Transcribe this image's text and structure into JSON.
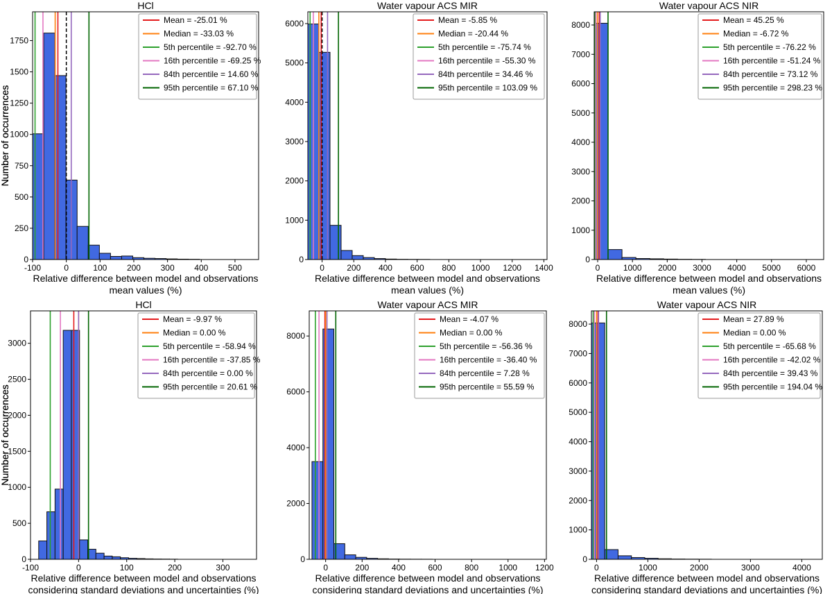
{
  "chart_data": [
    {
      "type": "bar",
      "title": "HCl",
      "xlabel": [
        "Relative difference between model and observations",
        "mean values (%)"
      ],
      "ylabel": "Number of occurrences",
      "xlim": [
        -100,
        570
      ],
      "ylim": [
        0,
        1980
      ],
      "xticks": [
        -100,
        0,
        100,
        200,
        300,
        400,
        500
      ],
      "yticks": [
        0,
        250,
        500,
        750,
        1000,
        1250,
        1500,
        1750
      ],
      "bins": [
        {
          "x0": -100,
          "x1": -67,
          "value": 1005
        },
        {
          "x0": -67,
          "x1": -34,
          "value": 1810
        },
        {
          "x0": -34,
          "x1": -1,
          "value": 1470
        },
        {
          "x0": -1,
          "x1": 32,
          "value": 635
        },
        {
          "x0": 32,
          "x1": 65,
          "value": 265
        },
        {
          "x0": 65,
          "x1": 98,
          "value": 115
        },
        {
          "x0": 98,
          "x1": 131,
          "value": 50
        },
        {
          "x0": 131,
          "x1": 164,
          "value": 25
        },
        {
          "x0": 164,
          "x1": 197,
          "value": 28
        },
        {
          "x0": 197,
          "x1": 230,
          "value": 15
        },
        {
          "x0": 230,
          "x1": 263,
          "value": 10
        },
        {
          "x0": 263,
          "x1": 296,
          "value": 8
        },
        {
          "x0": 296,
          "x1": 329,
          "value": 5
        },
        {
          "x0": 329,
          "x1": 362,
          "value": 3
        },
        {
          "x0": 362,
          "x1": 395,
          "value": 2
        }
      ],
      "vlines": [
        {
          "label": "Mean = -25.01 %",
          "x": -25.01,
          "color": "#e41a1c"
        },
        {
          "label": "Median = -33.03 %",
          "x": -33.03,
          "color": "#ff7f0e"
        },
        {
          "label": "5th percentile = -92.70 %",
          "x": -92.7,
          "color": "#2ca02c"
        },
        {
          "label": "16th percentile = -69.25 %",
          "x": -69.25,
          "color": "#e377c2"
        },
        {
          "label": "84th percentile = 14.60 %",
          "x": 14.6,
          "color": "#9467bd"
        },
        {
          "label": "95th percentile = 67.10 %",
          "x": 67.1,
          "color": "#006400"
        }
      ],
      "zero_line": true,
      "bar_color": "#4169e1",
      "legend_position": "top-right"
    },
    {
      "type": "bar",
      "title": "Water vapour ACS MIR",
      "xlabel": [
        "Relative difference between model and observations",
        "mean values (%)"
      ],
      "ylabel": "Number of occurrences",
      "xlim": [
        -90,
        1420
      ],
      "ylim": [
        0,
        6300
      ],
      "xticks": [
        0,
        200,
        400,
        600,
        800,
        1000,
        1200,
        1400
      ],
      "yticks": [
        0,
        1000,
        2000,
        3000,
        4000,
        5000,
        6000
      ],
      "bins": [
        {
          "x0": -90,
          "x1": -20,
          "value": 5990
        },
        {
          "x0": -20,
          "x1": 50,
          "value": 5270
        },
        {
          "x0": 50,
          "x1": 120,
          "value": 870
        },
        {
          "x0": 120,
          "x1": 190,
          "value": 230
        },
        {
          "x0": 190,
          "x1": 260,
          "value": 100
        },
        {
          "x0": 260,
          "x1": 330,
          "value": 50
        },
        {
          "x0": 330,
          "x1": 400,
          "value": 25
        },
        {
          "x0": 400,
          "x1": 470,
          "value": 12
        },
        {
          "x0": 470,
          "x1": 540,
          "value": 6
        },
        {
          "x0": 540,
          "x1": 610,
          "value": 4
        },
        {
          "x0": 610,
          "x1": 680,
          "value": 3
        }
      ],
      "vlines": [
        {
          "label": "Mean = -5.85 %",
          "x": -5.85,
          "color": "#e41a1c"
        },
        {
          "label": "Median = -20.44 %",
          "x": -20.44,
          "color": "#ff7f0e"
        },
        {
          "label": "5th percentile = -75.74 %",
          "x": -75.74,
          "color": "#2ca02c"
        },
        {
          "label": "16th percentile = -55.30 %",
          "x": -55.3,
          "color": "#e377c2"
        },
        {
          "label": "84th percentile = 34.46 %",
          "x": 34.46,
          "color": "#9467bd"
        },
        {
          "label": "95th percentile = 103.09 %",
          "x": 103.09,
          "color": "#006400"
        }
      ],
      "zero_line": true,
      "bar_color": "#4169e1",
      "legend_position": "top-right"
    },
    {
      "type": "bar",
      "title": "Water vapour ACS NIR",
      "xlabel": [
        "Relative difference between model and observations",
        "mean values (%)"
      ],
      "ylabel": "Number of occurrences",
      "xlim": [
        -100,
        6500
      ],
      "ylim": [
        0,
        8450
      ],
      "xticks": [
        0,
        1000,
        2000,
        3000,
        4000,
        5000,
        6000
      ],
      "yticks": [
        0,
        1000,
        2000,
        3000,
        4000,
        5000,
        6000,
        7000,
        8000
      ],
      "bins": [
        {
          "x0": -100,
          "x1": 300,
          "value": 8060
        },
        {
          "x0": 300,
          "x1": 700,
          "value": 340
        },
        {
          "x0": 700,
          "x1": 1100,
          "value": 70
        },
        {
          "x0": 1100,
          "x1": 1500,
          "value": 35
        },
        {
          "x0": 1500,
          "x1": 1900,
          "value": 25
        },
        {
          "x0": 1900,
          "x1": 2300,
          "value": 15
        },
        {
          "x0": 2300,
          "x1": 2700,
          "value": 8
        },
        {
          "x0": 2700,
          "x1": 3100,
          "value": 5
        }
      ],
      "vlines": [
        {
          "label": "Mean = 45.25 %",
          "x": 45.25,
          "color": "#e41a1c"
        },
        {
          "label": "Median = -6.72 %",
          "x": -6.72,
          "color": "#ff7f0e"
        },
        {
          "label": "5th percentile = -76.22 %",
          "x": -76.22,
          "color": "#2ca02c"
        },
        {
          "label": "16th percentile = -51.24 %",
          "x": -51.24,
          "color": "#e377c2"
        },
        {
          "label": "84th percentile = 73.12 %",
          "x": 73.12,
          "color": "#9467bd"
        },
        {
          "label": "95th percentile = 298.23 %",
          "x": 298.23,
          "color": "#006400"
        }
      ],
      "zero_line": false,
      "bar_color": "#4169e1",
      "legend_position": "top-right"
    },
    {
      "type": "bar",
      "title": "HCl",
      "xlabel": [
        "Relative difference between model and observations",
        "considering standard deviations and uncertainties (%)"
      ],
      "ylabel": "Number of occurrences",
      "xlim": [
        -100,
        370
      ],
      "ylim": [
        0,
        3450
      ],
      "xticks": [
        -100,
        0,
        100,
        200,
        300
      ],
      "yticks": [
        0,
        500,
        1000,
        1500,
        2000,
        2500,
        3000
      ],
      "bins": [
        {
          "x0": -83,
          "x1": -66,
          "value": 255
        },
        {
          "x0": -66,
          "x1": -49,
          "value": 660
        },
        {
          "x0": -49,
          "x1": -32,
          "value": 975
        },
        {
          "x0": -32,
          "x1": -15,
          "value": 3180
        },
        {
          "x0": -15,
          "x1": 2,
          "value": 3180
        },
        {
          "x0": 2,
          "x1": 19,
          "value": 270
        },
        {
          "x0": 19,
          "x1": 36,
          "value": 140
        },
        {
          "x0": 36,
          "x1": 53,
          "value": 85
        },
        {
          "x0": 53,
          "x1": 70,
          "value": 45
        },
        {
          "x0": 70,
          "x1": 87,
          "value": 35
        },
        {
          "x0": 87,
          "x1": 104,
          "value": 22
        },
        {
          "x0": 104,
          "x1": 121,
          "value": 14
        },
        {
          "x0": 121,
          "x1": 138,
          "value": 10
        },
        {
          "x0": 138,
          "x1": 155,
          "value": 6
        },
        {
          "x0": 155,
          "x1": 172,
          "value": 4
        },
        {
          "x0": 172,
          "x1": 189,
          "value": 3
        },
        {
          "x0": 189,
          "x1": 206,
          "value": 2
        }
      ],
      "vlines": [
        {
          "label": "Mean = -9.97 %",
          "x": -9.97,
          "color": "#e41a1c"
        },
        {
          "label": "Median = 0.00 %",
          "x": 0.0,
          "color": "#ff7f0e"
        },
        {
          "label": "5th percentile = -58.94 %",
          "x": -58.94,
          "color": "#2ca02c"
        },
        {
          "label": "16th percentile = -37.85 %",
          "x": -37.85,
          "color": "#e377c2"
        },
        {
          "label": "84th percentile = 0.00 %",
          "x": 0.0,
          "color": "#9467bd"
        },
        {
          "label": "95th percentile = 20.61 %",
          "x": 20.61,
          "color": "#006400"
        }
      ],
      "zero_line": false,
      "bar_color": "#4169e1",
      "legend_position": "top-right"
    },
    {
      "type": "bar",
      "title": "Water vapour ACS MIR",
      "xlabel": [
        "Relative difference between model and observations",
        "considering standard deviations and uncertainties (%)"
      ],
      "ylabel": "Number of occurrences",
      "xlim": [
        -90,
        1210
      ],
      "ylim": [
        0,
        8900
      ],
      "xticks": [
        0,
        200,
        400,
        600,
        800,
        1000,
        1200
      ],
      "yticks": [
        0,
        2000,
        4000,
        6000,
        8000
      ],
      "bins": [
        {
          "x0": -75,
          "x1": -15,
          "value": 3500
        },
        {
          "x0": -15,
          "x1": 45,
          "value": 8250
        },
        {
          "x0": 45,
          "x1": 105,
          "value": 560
        },
        {
          "x0": 105,
          "x1": 165,
          "value": 160
        },
        {
          "x0": 165,
          "x1": 225,
          "value": 70
        },
        {
          "x0": 225,
          "x1": 285,
          "value": 35
        },
        {
          "x0": 285,
          "x1": 345,
          "value": 18
        },
        {
          "x0": 345,
          "x1": 405,
          "value": 10
        },
        {
          "x0": 405,
          "x1": 465,
          "value": 6
        },
        {
          "x0": 465,
          "x1": 525,
          "value": 4
        },
        {
          "x0": 525,
          "x1": 585,
          "value": 3
        }
      ],
      "vlines": [
        {
          "label": "Mean = -4.07 %",
          "x": -4.07,
          "color": "#e41a1c"
        },
        {
          "label": "Median = 0.00 %",
          "x": 0.0,
          "color": "#ff7f0e"
        },
        {
          "label": "5th percentile = -56.36 %",
          "x": -56.36,
          "color": "#2ca02c"
        },
        {
          "label": "16th percentile = -36.40 %",
          "x": -36.4,
          "color": "#e377c2"
        },
        {
          "label": "84th percentile = 7.28 %",
          "x": 7.28,
          "color": "#9467bd"
        },
        {
          "label": "95th percentile = 55.59 %",
          "x": 55.59,
          "color": "#006400"
        }
      ],
      "zero_line": false,
      "bar_color": "#4169e1",
      "legend_position": "top-right"
    },
    {
      "type": "bar",
      "title": "Water vapour ACS NIR",
      "xlabel": [
        "Relative difference between model and observations",
        "considering standard deviations and uncertainties (%)"
      ],
      "ylabel": "Number of occurrences",
      "xlim": [
        -100,
        4400
      ],
      "ylim": [
        0,
        8450
      ],
      "xticks": [
        0,
        1000,
        2000,
        3000,
        4000
      ],
      "yticks": [
        0,
        1000,
        2000,
        3000,
        4000,
        5000,
        6000,
        7000,
        8000
      ],
      "bins": [
        {
          "x0": -100,
          "x1": 160,
          "value": 8040
        },
        {
          "x0": 160,
          "x1": 420,
          "value": 330
        },
        {
          "x0": 420,
          "x1": 680,
          "value": 120
        },
        {
          "x0": 680,
          "x1": 940,
          "value": 60
        },
        {
          "x0": 940,
          "x1": 1200,
          "value": 35
        },
        {
          "x0": 1200,
          "x1": 1460,
          "value": 18
        },
        {
          "x0": 1460,
          "x1": 1720,
          "value": 10
        },
        {
          "x0": 1720,
          "x1": 1980,
          "value": 6
        },
        {
          "x0": 1980,
          "x1": 2240,
          "value": 4
        }
      ],
      "vlines": [
        {
          "label": "Mean = 27.89 %",
          "x": 27.89,
          "color": "#e41a1c"
        },
        {
          "label": "Median = 0.00 %",
          "x": 0.0,
          "color": "#ff7f0e"
        },
        {
          "label": "5th percentile = -65.68 %",
          "x": -65.68,
          "color": "#2ca02c"
        },
        {
          "label": "16th percentile = -42.02 %",
          "x": -42.02,
          "color": "#e377c2"
        },
        {
          "label": "84th percentile = 39.43 %",
          "x": 39.43,
          "color": "#9467bd"
        },
        {
          "label": "95th percentile = 194.04 %",
          "x": 194.04,
          "color": "#006400"
        }
      ],
      "zero_line": false,
      "bar_color": "#4169e1",
      "legend_position": "top-right"
    }
  ]
}
